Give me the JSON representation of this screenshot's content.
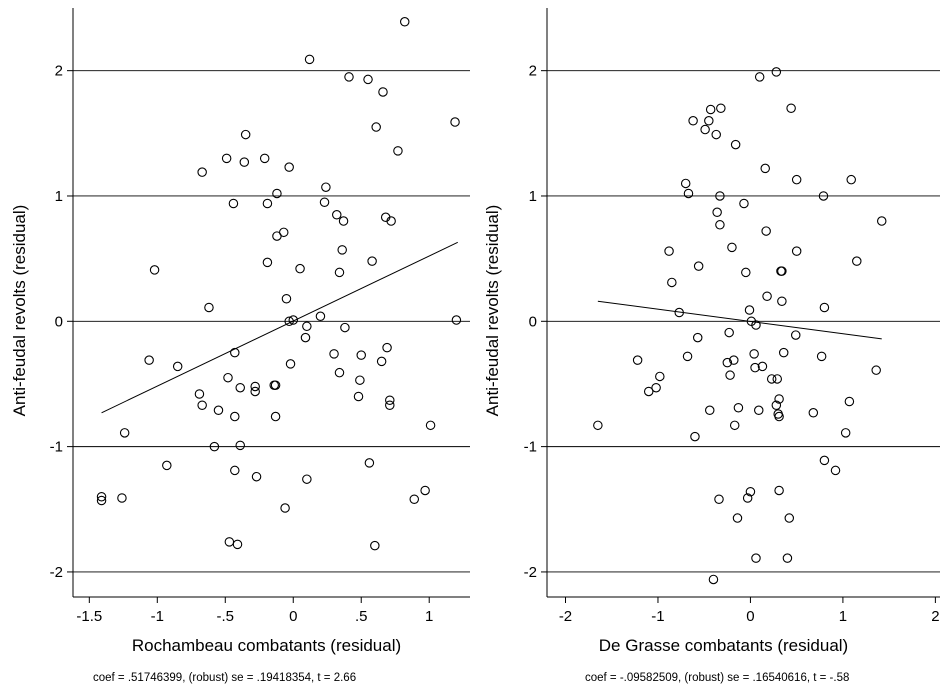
{
  "chart_data": [
    {
      "type": "scatter",
      "xlabel": "Rochambeau combatants (residual)",
      "ylabel": "Anti-feudal revolts (residual)",
      "note": "coef = .51746399, (robust) se = .19418354, t = 2.66",
      "xlim": [
        -1.62,
        1.3
      ],
      "ylim": [
        -2.2,
        2.5
      ],
      "xticks": [
        -1.5,
        -1,
        -0.5,
        0,
        0.5,
        1
      ],
      "xtick_labels": [
        "-1.5",
        "-1",
        "-.5",
        "0",
        ".5",
        "1"
      ],
      "yticks": [
        -2,
        -1,
        0,
        1,
        2
      ],
      "ytick_labels": [
        "-2",
        "-1",
        "0",
        "1",
        "2"
      ],
      "grid": "horizontal",
      "fit_line": {
        "x": [
          -1.41,
          1.21
        ],
        "y": [
          -0.73,
          0.63
        ]
      },
      "points": [
        [
          -1.41,
          -1.4
        ],
        [
          -1.41,
          -1.43
        ],
        [
          -1.26,
          -1.41
        ],
        [
          -1.24,
          -0.89
        ],
        [
          -1.06,
          -0.31
        ],
        [
          -1.02,
          0.41
        ],
        [
          -0.93,
          -1.15
        ],
        [
          -0.85,
          -0.36
        ],
        [
          -0.69,
          -0.58
        ],
        [
          -0.67,
          -0.67
        ],
        [
          -0.67,
          1.19
        ],
        [
          -0.62,
          0.11
        ],
        [
          -0.58,
          -1.0
        ],
        [
          -0.55,
          -0.71
        ],
        [
          -0.49,
          1.3
        ],
        [
          -0.48,
          -0.45
        ],
        [
          -0.47,
          -1.76
        ],
        [
          -0.44,
          0.94
        ],
        [
          -0.43,
          -0.76
        ],
        [
          -0.43,
          -1.19
        ],
        [
          -0.43,
          -0.25
        ],
        [
          -0.41,
          -1.78
        ],
        [
          -0.39,
          -0.99
        ],
        [
          -0.39,
          -0.53
        ],
        [
          -0.36,
          1.27
        ],
        [
          -0.35,
          1.49
        ],
        [
          -0.28,
          -0.52
        ],
        [
          -0.28,
          -0.56
        ],
        [
          -0.27,
          -1.24
        ],
        [
          -0.21,
          1.3
        ],
        [
          -0.19,
          0.47
        ],
        [
          -0.19,
          0.94
        ],
        [
          -0.14,
          -0.51
        ],
        [
          -0.13,
          -0.51
        ],
        [
          -0.13,
          -0.76
        ],
        [
          -0.12,
          1.02
        ],
        [
          -0.12,
          0.68
        ],
        [
          -0.07,
          0.71
        ],
        [
          -0.06,
          -1.49
        ],
        [
          -0.05,
          0.18
        ],
        [
          -0.03,
          0.0
        ],
        [
          -0.03,
          1.23
        ],
        [
          -0.02,
          -0.34
        ],
        [
          0.0,
          0.01
        ],
        [
          0.05,
          0.42
        ],
        [
          0.09,
          -0.13
        ],
        [
          0.1,
          -0.04
        ],
        [
          0.1,
          -1.26
        ],
        [
          0.12,
          2.09
        ],
        [
          0.2,
          0.04
        ],
        [
          0.23,
          0.95
        ],
        [
          0.24,
          1.07
        ],
        [
          0.3,
          -0.26
        ],
        [
          0.32,
          0.85
        ],
        [
          0.34,
          -0.41
        ],
        [
          0.34,
          0.39
        ],
        [
          0.36,
          0.57
        ],
        [
          0.37,
          0.8
        ],
        [
          0.38,
          -0.05
        ],
        [
          0.41,
          1.95
        ],
        [
          0.48,
          -0.6
        ],
        [
          0.49,
          -0.47
        ],
        [
          0.5,
          -0.27
        ],
        [
          0.55,
          1.93
        ],
        [
          0.56,
          -1.13
        ],
        [
          0.58,
          0.48
        ],
        [
          0.6,
          -1.79
        ],
        [
          0.61,
          1.55
        ],
        [
          0.65,
          -0.32
        ],
        [
          0.66,
          1.83
        ],
        [
          0.68,
          0.83
        ],
        [
          0.69,
          -0.21
        ],
        [
          0.71,
          -0.63
        ],
        [
          0.71,
          -0.67
        ],
        [
          0.72,
          0.8
        ],
        [
          0.77,
          1.36
        ],
        [
          0.82,
          2.39
        ],
        [
          0.89,
          -1.42
        ],
        [
          0.97,
          -1.35
        ],
        [
          1.01,
          -0.83
        ],
        [
          1.19,
          1.59
        ],
        [
          1.2,
          0.01
        ]
      ]
    },
    {
      "type": "scatter",
      "xlabel": "De Grasse combatants (residual)",
      "ylabel": "Anti-feudal revolts (residual)",
      "note": "coef = -.09582509, (robust) se = .16540616, t = -.58",
      "xlim": [
        -2.2,
        2.05
      ],
      "ylim": [
        -2.2,
        2.5
      ],
      "xticks": [
        -2,
        -1,
        0,
        1,
        2
      ],
      "xtick_labels": [
        "-2",
        "-1",
        "0",
        "1",
        "2"
      ],
      "yticks": [
        -2,
        -1,
        0,
        1,
        2
      ],
      "ytick_labels": [
        "-2",
        "-1",
        "0",
        "1",
        "2"
      ],
      "grid": "horizontal",
      "fit_line": {
        "x": [
          -1.65,
          1.42
        ],
        "y": [
          0.16,
          -0.14
        ]
      },
      "points": [
        [
          -1.65,
          -0.83
        ],
        [
          -1.22,
          -0.31
        ],
        [
          -1.1,
          -0.56
        ],
        [
          -1.02,
          -0.53
        ],
        [
          -0.98,
          -0.44
        ],
        [
          -0.88,
          0.56
        ],
        [
          -0.85,
          0.31
        ],
        [
          -0.77,
          0.07
        ],
        [
          -0.7,
          1.1
        ],
        [
          -0.68,
          -0.28
        ],
        [
          -0.67,
          1.02
        ],
        [
          -0.62,
          1.6
        ],
        [
          -0.6,
          -0.92
        ],
        [
          -0.57,
          -0.13
        ],
        [
          -0.56,
          0.44
        ],
        [
          -0.49,
          1.53
        ],
        [
          -0.45,
          1.6
        ],
        [
          -0.44,
          -0.71
        ],
        [
          -0.43,
          1.69
        ],
        [
          -0.4,
          -2.06
        ],
        [
          -0.37,
          1.49
        ],
        [
          -0.36,
          0.87
        ],
        [
          -0.34,
          -1.42
        ],
        [
          -0.33,
          0.77
        ],
        [
          -0.33,
          1.0
        ],
        [
          -0.32,
          1.7
        ],
        [
          -0.25,
          -0.33
        ],
        [
          -0.23,
          -0.09
        ],
        [
          -0.22,
          -0.43
        ],
        [
          -0.2,
          0.59
        ],
        [
          -0.18,
          -0.31
        ],
        [
          -0.17,
          -0.83
        ],
        [
          -0.16,
          1.41
        ],
        [
          -0.14,
          -1.57
        ],
        [
          -0.13,
          -0.69
        ],
        [
          -0.07,
          0.94
        ],
        [
          -0.05,
          0.39
        ],
        [
          -0.03,
          -1.41
        ],
        [
          -0.01,
          0.09
        ],
        [
          0.0,
          -1.36
        ],
        [
          0.01,
          0.0
        ],
        [
          0.04,
          -0.26
        ],
        [
          0.05,
          -0.37
        ],
        [
          0.06,
          -1.89
        ],
        [
          0.06,
          -0.03
        ],
        [
          0.09,
          -0.71
        ],
        [
          0.1,
          1.95
        ],
        [
          0.13,
          -0.36
        ],
        [
          0.16,
          1.22
        ],
        [
          0.17,
          0.72
        ],
        [
          0.18,
          0.2
        ],
        [
          0.23,
          -0.46
        ],
        [
          0.28,
          -0.67
        ],
        [
          0.28,
          1.99
        ],
        [
          0.29,
          -0.46
        ],
        [
          0.3,
          -0.74
        ],
        [
          0.31,
          -0.62
        ],
        [
          0.31,
          -1.35
        ],
        [
          0.31,
          -0.76
        ],
        [
          0.33,
          0.4
        ],
        [
          0.34,
          0.4
        ],
        [
          0.34,
          0.16
        ],
        [
          0.36,
          -0.25
        ],
        [
          0.4,
          -1.89
        ],
        [
          0.42,
          -1.57
        ],
        [
          0.44,
          1.7
        ],
        [
          0.49,
          -0.11
        ],
        [
          0.5,
          0.56
        ],
        [
          0.5,
          1.13
        ],
        [
          0.68,
          -0.73
        ],
        [
          0.77,
          -0.28
        ],
        [
          0.79,
          1.0
        ],
        [
          0.8,
          0.11
        ],
        [
          0.8,
          -1.11
        ],
        [
          0.92,
          -1.19
        ],
        [
          1.03,
          -0.89
        ],
        [
          1.07,
          -0.64
        ],
        [
          1.09,
          1.13
        ],
        [
          1.15,
          0.48
        ],
        [
          1.36,
          -0.39
        ],
        [
          1.42,
          0.8
        ]
      ]
    }
  ]
}
